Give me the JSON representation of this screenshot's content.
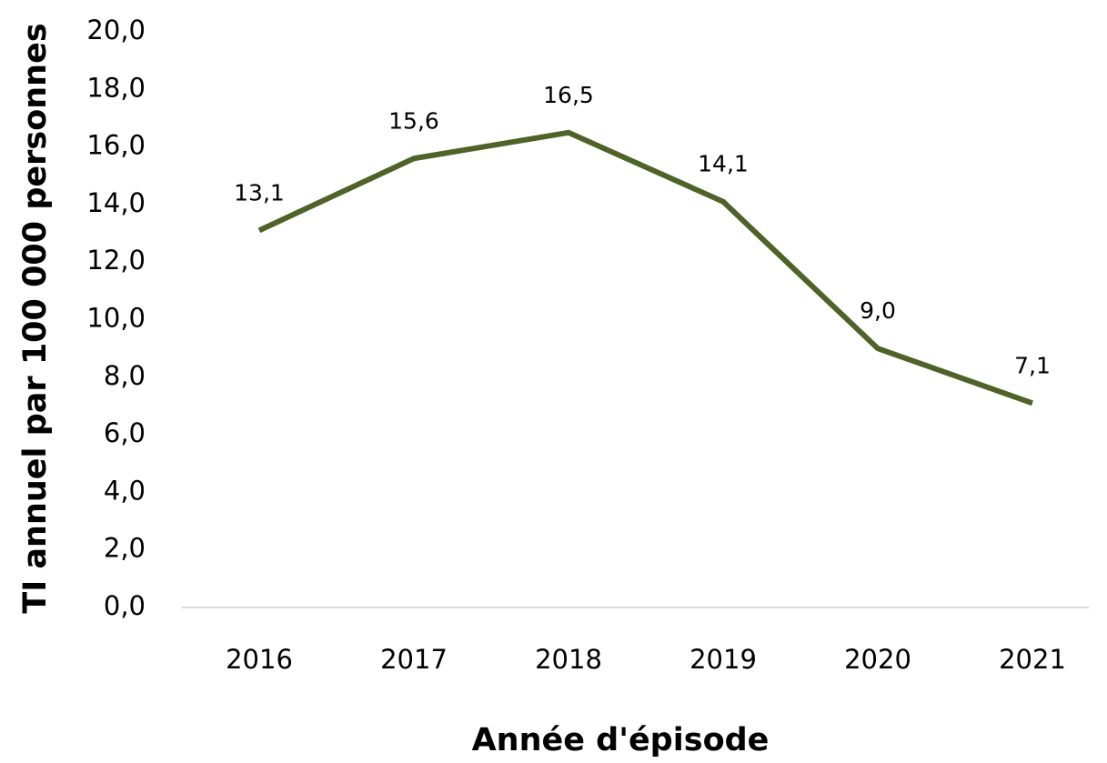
{
  "chart_data": {
    "type": "line",
    "x_label": "Année d'épisode",
    "y_label": "TI annuel par 100 000 personnes",
    "categories": [
      "2016",
      "2017",
      "2018",
      "2019",
      "2020",
      "2021"
    ],
    "series": [
      {
        "name": "TI annuel",
        "color": "#4f6228",
        "values": [
          13.1,
          15.6,
          16.5,
          14.1,
          9.0,
          7.1
        ],
        "value_labels": [
          "13,1",
          "15,6",
          "16,5",
          "14,1",
          "9,0",
          "7,1"
        ]
      }
    ],
    "ylim": [
      0,
      20
    ],
    "yticks": [
      {
        "value": 0,
        "label": "0,0"
      },
      {
        "value": 2,
        "label": "2,0"
      },
      {
        "value": 4,
        "label": "4,0"
      },
      {
        "value": 6,
        "label": "6,0"
      },
      {
        "value": 8,
        "label": "8,0"
      },
      {
        "value": 10,
        "label": "10,0"
      },
      {
        "value": 12,
        "label": "12,0"
      },
      {
        "value": 14,
        "label": "14,0"
      },
      {
        "value": 16,
        "label": "16,0"
      },
      {
        "value": 18,
        "label": "18,0"
      },
      {
        "value": 20,
        "label": "20,0"
      }
    ],
    "grid": false
  }
}
